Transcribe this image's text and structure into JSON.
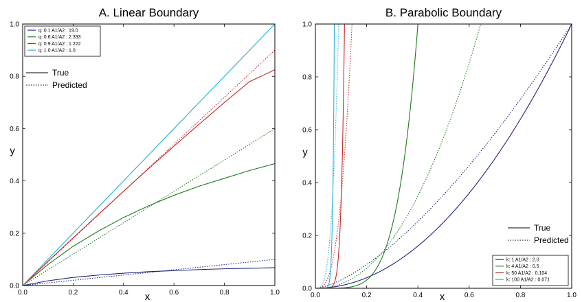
{
  "chart_data": [
    {
      "type": "line",
      "title": "A. Linear Boundary",
      "xlabel": "x",
      "ylabel": "y",
      "xlim": [
        0.0,
        1.0
      ],
      "ylim": [
        0.0,
        1.0
      ],
      "xticks": [
        "0.0",
        "0.2",
        "0.4",
        "0.6",
        "0.8",
        "1.0"
      ],
      "yticks": [
        "0.0",
        "0.2",
        "0.4",
        "0.6",
        "0.8",
        "1.0"
      ],
      "grid": false,
      "legend_position": "top-left",
      "x": [
        0.0,
        0.1,
        0.2,
        0.3,
        0.4,
        0.5,
        0.6,
        0.7,
        0.8,
        0.9,
        1.0
      ],
      "series": [
        {
          "label": "q: 0.1  A1/A2 : 19.0",
          "color": "#1a237e",
          "true": [
            0.0,
            0.018,
            0.031,
            0.04,
            0.047,
            0.053,
            0.057,
            0.061,
            0.064,
            0.066,
            0.068
          ],
          "predicted": [
            0.0,
            0.01,
            0.02,
            0.03,
            0.04,
            0.05,
            0.06,
            0.07,
            0.08,
            0.09,
            0.1
          ]
        },
        {
          "label": "q: 0.6  A1/A2 : 2.333",
          "color": "#1b7a1b",
          "true": [
            0.0,
            0.08,
            0.15,
            0.208,
            0.26,
            0.305,
            0.345,
            0.38,
            0.41,
            0.44,
            0.466
          ],
          "predicted": [
            0.0,
            0.06,
            0.12,
            0.18,
            0.24,
            0.3,
            0.36,
            0.42,
            0.48,
            0.54,
            0.6
          ]
        },
        {
          "label": "q: 0.9  A1/A2 : 1.222",
          "color": "#c62828",
          "true": [
            0.0,
            0.092,
            0.182,
            0.272,
            0.36,
            0.448,
            0.533,
            0.617,
            0.7,
            0.78,
            0.825
          ],
          "predicted": [
            0.0,
            0.09,
            0.18,
            0.27,
            0.36,
            0.45,
            0.54,
            0.63,
            0.72,
            0.81,
            0.9
          ]
        },
        {
          "label": "q: 1.0  A1/A2 : 1.0",
          "color": "#2bb3d6",
          "true": [
            0.0,
            0.1,
            0.2,
            0.3,
            0.4,
            0.5,
            0.6,
            0.7,
            0.8,
            0.9,
            1.0
          ],
          "predicted": [
            0.0,
            0.1,
            0.2,
            0.3,
            0.4,
            0.5,
            0.6,
            0.7,
            0.8,
            0.9,
            1.0
          ]
        }
      ],
      "style_legend": {
        "true_label": "True",
        "predicted_label": "Predicted"
      }
    },
    {
      "type": "line",
      "title": "B. Parabolic Boundary",
      "xlabel": "x",
      "ylabel": "y",
      "xlim": [
        0.0,
        1.0
      ],
      "ylim": [
        0.0,
        1.0
      ],
      "xticks": [
        "0.0",
        "0.2",
        "0.4",
        "0.6",
        "0.8",
        "1.0"
      ],
      "yticks": [
        "0.0",
        "0.2",
        "0.4",
        "0.6",
        "0.8",
        "1.0"
      ],
      "grid": false,
      "legend_position": "bottom-right",
      "series": [
        {
          "label": "k: 1  A1/A2 : 2.0",
          "color": "#1a237e",
          "true_exponent": 2.0,
          "predicted_exponent": 1.5
        },
        {
          "label": "k: 4  A1/A2 : 0.5",
          "color": "#1b7a1b",
          "true_exponent": 5.0,
          "predicted_exponent": 2.2
        },
        {
          "label": "k: 50  A1/A2 : 0.104",
          "color": "#c62828",
          "true_exponent": 9.0,
          "predicted_exponent": 3.0
        },
        {
          "label": "k: 100  A1/A2 : 0.071",
          "color": "#2bb3d6",
          "true_exponent": 12.0,
          "predicted_exponent": 3.5
        }
      ],
      "true_extra_x_scale": [
        1.0,
        2.5,
        8.8,
        13.5
      ],
      "predicted_extra_x_scale": [
        1.0,
        1.55,
        7.0,
        11.0
      ],
      "style_legend": {
        "true_label": "True",
        "predicted_label": "Predicted"
      }
    }
  ]
}
